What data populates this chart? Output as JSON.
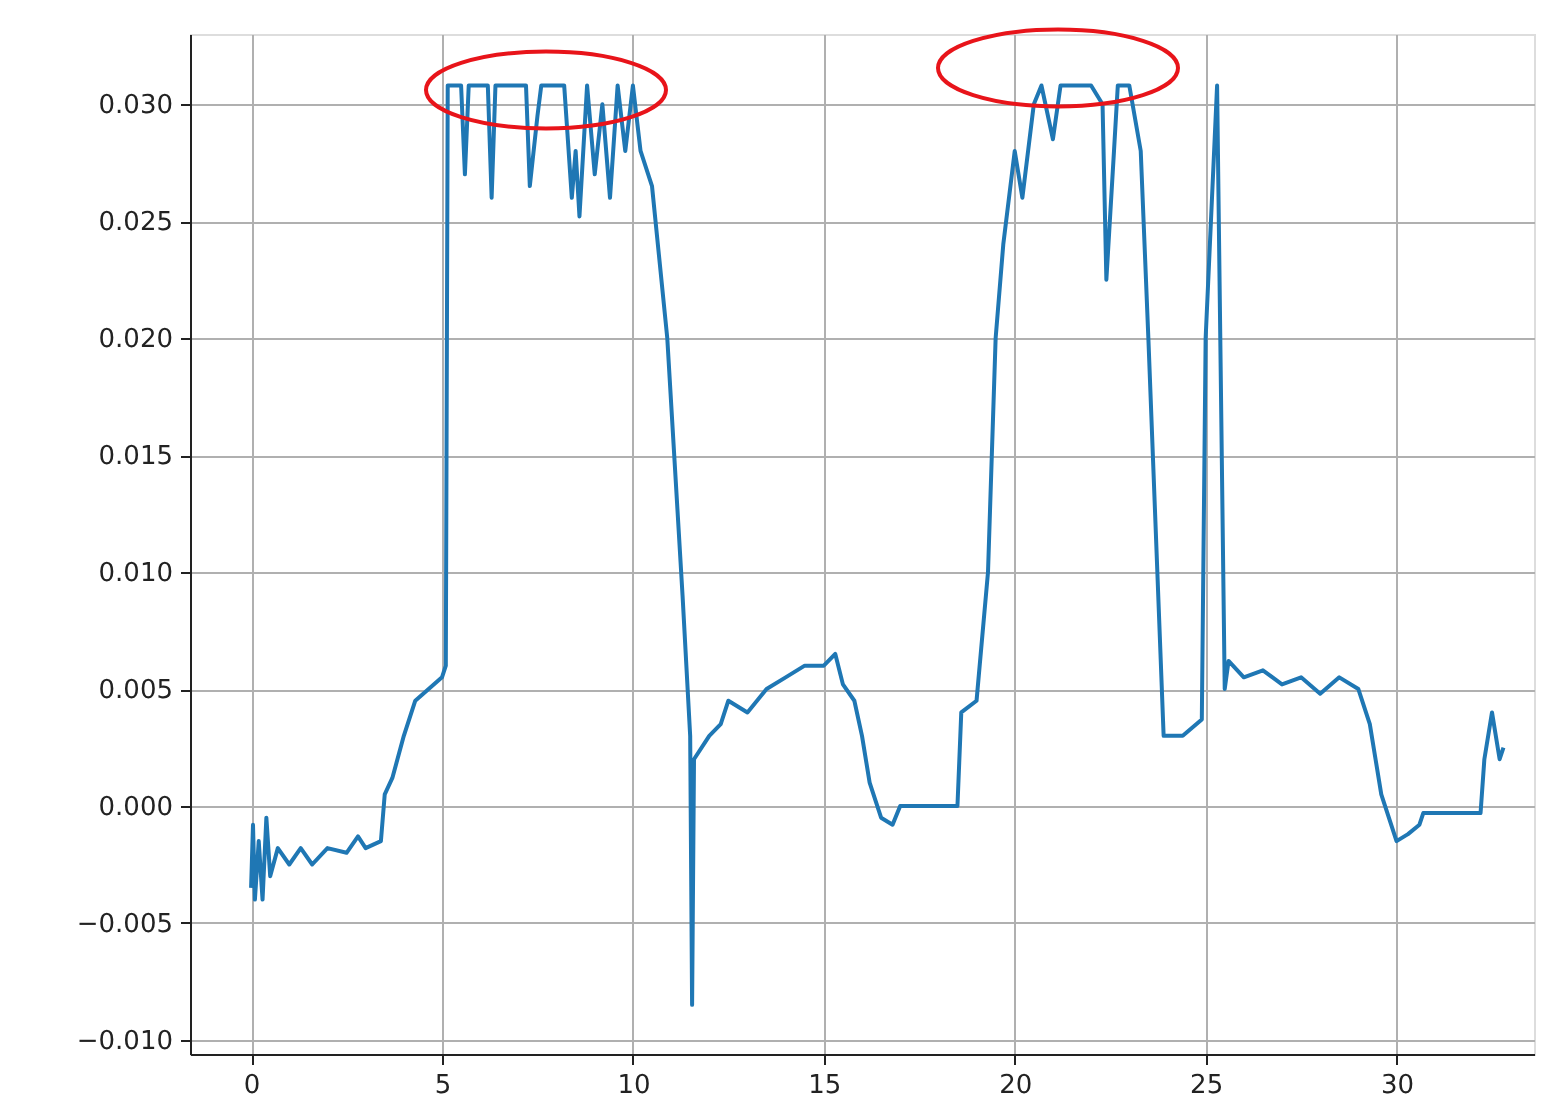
{
  "chart_data": {
    "type": "line",
    "xlim": [
      -1.6,
      33.6
    ],
    "ylim": [
      -0.0106,
      0.033
    ],
    "xticks": [
      0,
      5,
      10,
      15,
      20,
      25,
      30
    ],
    "yticks": [
      {
        "value": -0.01,
        "label": "−0.010"
      },
      {
        "value": -0.005,
        "label": "−0.005"
      },
      {
        "value": 0,
        "label": "0.000"
      },
      {
        "value": 0.005,
        "label": "0.005"
      },
      {
        "value": 0.01,
        "label": "0.010"
      },
      {
        "value": 0.015,
        "label": "0.015"
      },
      {
        "value": 0.02,
        "label": "0.020"
      },
      {
        "value": 0.025,
        "label": "0.025"
      },
      {
        "value": 0.03,
        "label": "0.030"
      }
    ],
    "grid": true,
    "series": [
      {
        "color": "#1f77b4",
        "x": [
          0,
          0.05,
          0.1,
          0.2,
          0.3,
          0.4,
          0.5,
          0.7,
          1.0,
          1.3,
          1.6,
          2.0,
          2.5,
          2.8,
          3.0,
          3.4,
          3.5,
          3.7,
          4.0,
          4.3,
          5.0,
          5.1,
          5.15,
          5.5,
          5.6,
          5.7,
          6.2,
          6.3,
          6.4,
          7.2,
          7.3,
          7.5,
          7.6,
          8.2,
          8.4,
          8.5,
          8.6,
          8.8,
          9.0,
          9.2,
          9.4,
          9.6,
          9.8,
          10.0,
          10.2,
          10.5,
          10.9,
          11.3,
          11.5,
          11.55,
          11.6,
          12.0,
          12.3,
          12.5,
          13.0,
          13.5,
          14.0,
          14.5,
          15.0,
          15.3,
          15.5,
          15.8,
          16.0,
          16.2,
          16.5,
          16.8,
          17.0,
          18.5,
          18.6,
          19.0,
          19.3,
          19.5,
          19.7,
          20.0,
          20.2,
          20.5,
          20.7,
          21.0,
          21.2,
          22.0,
          22.3,
          22.4,
          22.6,
          22.7,
          23.0,
          23.3,
          23.5,
          23.9,
          24.4,
          24.9,
          25.0,
          25.3,
          25.5,
          25.6,
          26.0,
          26.5,
          27.0,
          27.5,
          28.0,
          28.5,
          29.0,
          29.3,
          29.6,
          30.0,
          30.3,
          30.6,
          30.7,
          32.2,
          32.3,
          32.5,
          32.7,
          32.8
        ],
        "values": [
          -0.0035,
          -0.0008,
          -0.004,
          -0.0015,
          -0.004,
          -0.0005,
          -0.003,
          -0.0018,
          -0.0025,
          -0.0018,
          -0.0025,
          -0.0018,
          -0.002,
          -0.0013,
          -0.0018,
          -0.0015,
          0.0005,
          0.0012,
          0.003,
          0.0045,
          0.0055,
          0.006,
          0.0308,
          0.0308,
          0.027,
          0.0308,
          0.0308,
          0.026,
          0.0308,
          0.0308,
          0.0265,
          0.0295,
          0.0308,
          0.0308,
          0.026,
          0.028,
          0.0252,
          0.0308,
          0.027,
          0.03,
          0.026,
          0.0308,
          0.028,
          0.0308,
          0.028,
          0.0265,
          0.02,
          0.009,
          0.003,
          -0.0085,
          0.002,
          0.003,
          0.0035,
          0.0045,
          0.004,
          0.005,
          0.0055,
          0.006,
          0.006,
          0.0065,
          0.0052,
          0.0045,
          0.003,
          0.001,
          -0.0005,
          -0.0008,
          0.0,
          0.0,
          0.004,
          0.0045,
          0.01,
          0.02,
          0.024,
          0.028,
          0.026,
          0.03,
          0.0308,
          0.0285,
          0.0308,
          0.0308,
          0.03,
          0.0225,
          0.028,
          0.0308,
          0.0308,
          0.028,
          0.02,
          0.003,
          0.003,
          0.0037,
          0.02,
          0.0308,
          0.005,
          0.0062,
          0.0055,
          0.0058,
          0.0052,
          0.0055,
          0.0048,
          0.0055,
          0.005,
          0.0035,
          0.0005,
          -0.0015,
          -0.0012,
          -0.0008,
          -0.0003,
          -0.0003,
          0.002,
          0.004,
          0.002,
          0.0025
        ]
      }
    ]
  }
}
